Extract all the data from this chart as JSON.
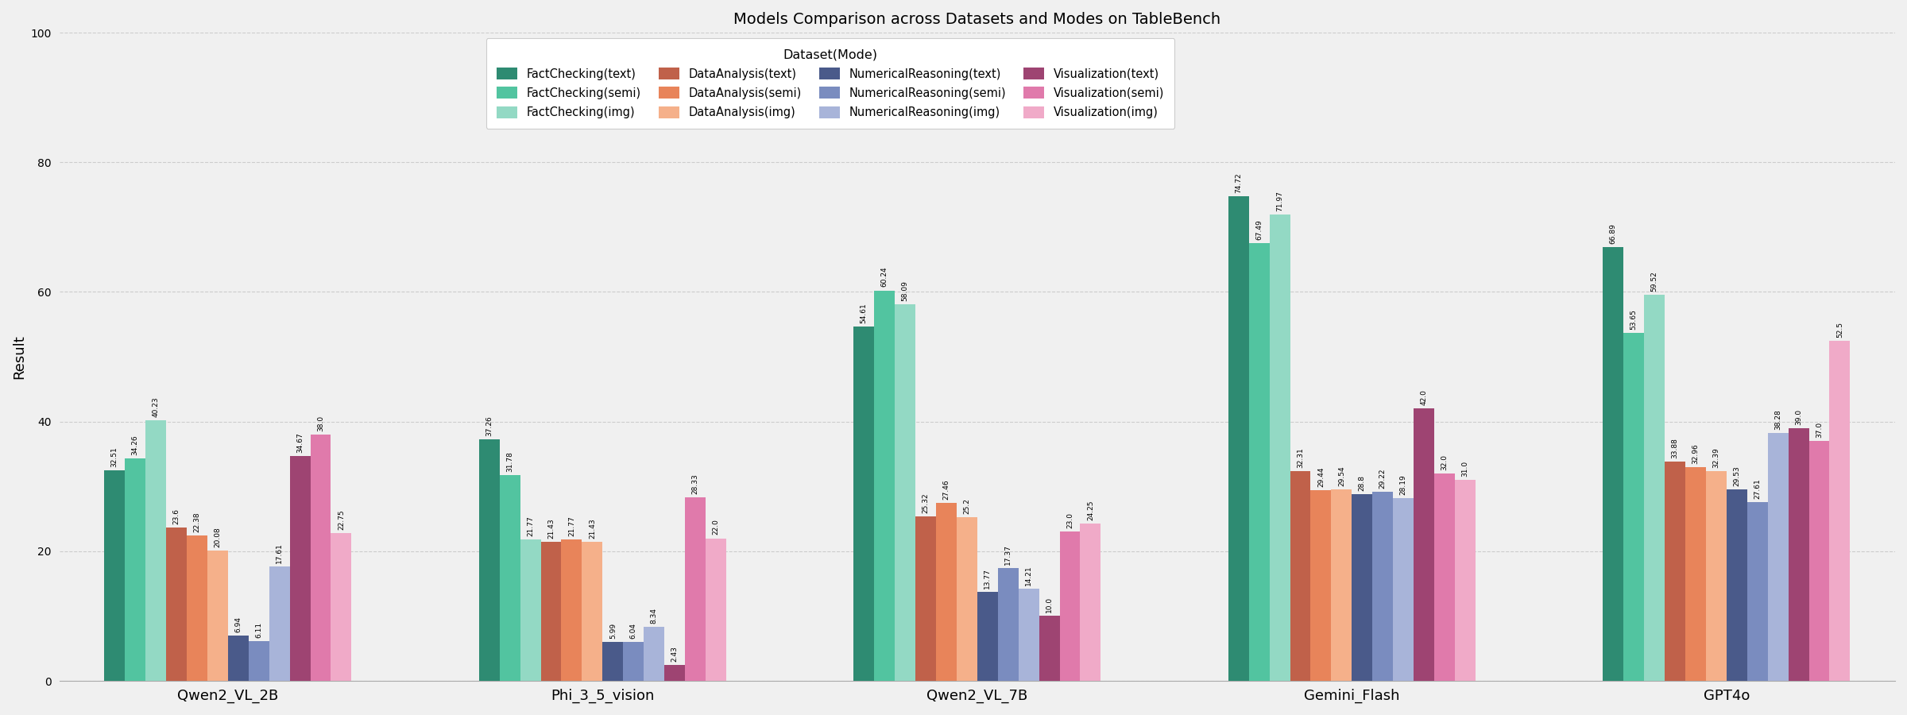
{
  "title": "Models Comparison across Datasets and Modes on TableBench",
  "ylabel": "Result",
  "legend_title": "Dataset(Mode)",
  "models": [
    "Qwen2_VL_2B",
    "Phi_3_5_vision",
    "Qwen2_VL_7B",
    "Gemini_Flash",
    "GPT4o"
  ],
  "model_labels": [
    "Qwen2_VL_2B",
    "Phi_3_5_vision",
    "Qwen2_VL_7B",
    "Gemini_Flash",
    "GPT4o"
  ],
  "datasets": [
    "FactChecking(text)",
    "FactChecking(semi)",
    "FactChecking(img)",
    "DataAnalysis(text)",
    "DataAnalysis(semi)",
    "DataAnalysis(img)",
    "NumericalReasoning(text)",
    "NumericalReasoning(semi)",
    "NumericalReasoning(img)",
    "Visualization(text)",
    "Visualization(semi)",
    "Visualization(img)"
  ],
  "colors": [
    "#2e8b72",
    "#52c4a0",
    "#93d9c4",
    "#c0614a",
    "#e8845a",
    "#f5b08a",
    "#4a5a8a",
    "#7a8cbf",
    "#a8b4d9",
    "#9e4472",
    "#e07aab",
    "#f0aac8"
  ],
  "values": {
    "Qwen2_VL_2B": [
      32.51,
      34.26,
      40.23,
      23.6,
      22.38,
      20.08,
      6.94,
      6.11,
      17.61,
      34.67,
      38.0,
      22.75
    ],
    "Phi_3_5_vision": [
      37.26,
      31.78,
      21.77,
      21.43,
      21.77,
      21.43,
      5.99,
      6.04,
      8.34,
      2.43,
      28.33,
      22.0
    ],
    "Qwen2_VL_7B": [
      54.61,
      60.24,
      58.09,
      25.32,
      27.46,
      25.2,
      13.77,
      17.37,
      14.21,
      10.0,
      23.0,
      24.25
    ],
    "Gemini_Flash": [
      74.72,
      67.49,
      71.97,
      32.31,
      29.44,
      29.54,
      28.8,
      29.22,
      28.19,
      42.0,
      32.0,
      31.0
    ],
    "GPT4o": [
      66.89,
      53.65,
      59.52,
      33.88,
      32.96,
      32.39,
      29.53,
      27.61,
      38.28,
      39.0,
      37.0,
      52.5
    ]
  },
  "ylim": [
    0,
    100
  ],
  "yticks": [
    0,
    20,
    40,
    60,
    80,
    100
  ],
  "background_color": "#f0f0f0",
  "plot_bg_color": "#f0f0f0",
  "grid_color": "#cccccc",
  "figsize": [
    24.0,
    9.0
  ],
  "dpi": 100
}
